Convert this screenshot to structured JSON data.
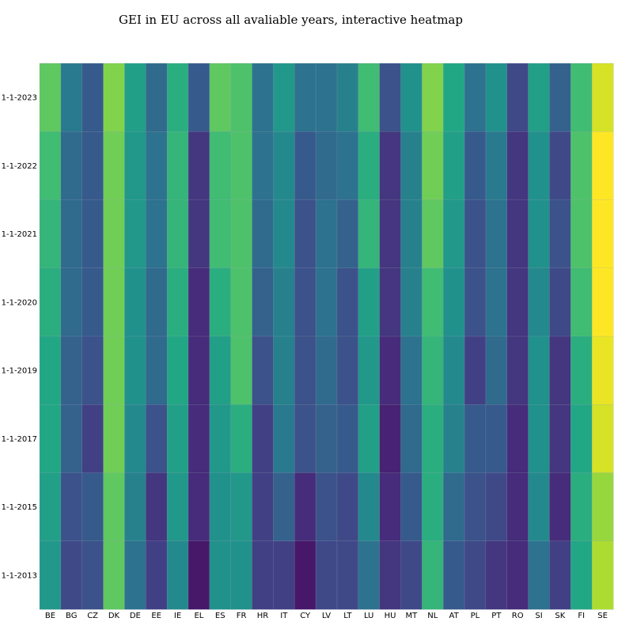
{
  "chart_data": {
    "type": "heatmap",
    "title": "GEI in EU across all avaliable years, interactive heatmap",
    "xlabel": "",
    "ylabel": "",
    "colorscale": "viridis",
    "zlim": [
      52,
      84
    ],
    "x": [
      "BE",
      "BG",
      "CZ",
      "DK",
      "DE",
      "EE",
      "IE",
      "EL",
      "ES",
      "FR",
      "HR",
      "IT",
      "CY",
      "LV",
      "LT",
      "LU",
      "HU",
      "MT",
      "NL",
      "AT",
      "PL",
      "PT",
      "RO",
      "SI",
      "SK",
      "FI",
      "SE"
    ],
    "y": [
      "1-1-2023",
      "1-1-2022",
      "1-1-2021",
      "1-1-2020",
      "1-1-2019",
      "1-1-2017",
      "1-1-2015",
      "1-1-2013"
    ],
    "z": [
      [
        76,
        65,
        61,
        78,
        70,
        63,
        72,
        61,
        76,
        75,
        64,
        69,
        64,
        64,
        66,
        74,
        60,
        68,
        78,
        71,
        64,
        68,
        59,
        70,
        62,
        74,
        82
      ],
      [
        74,
        63,
        61,
        77,
        69,
        64,
        73,
        57,
        74,
        75,
        64,
        67,
        61,
        63,
        64,
        72,
        57,
        66,
        77,
        70,
        61,
        65,
        57,
        68,
        59,
        75,
        84
      ],
      [
        73,
        63,
        61,
        77,
        69,
        64,
        73,
        57,
        74,
        75,
        63,
        67,
        60,
        64,
        62,
        73,
        57,
        66,
        76,
        69,
        60,
        64,
        57,
        68,
        60,
        75,
        84
      ],
      [
        72,
        63,
        61,
        77,
        68,
        63,
        72,
        56,
        72,
        75,
        62,
        66,
        60,
        64,
        60,
        70,
        57,
        66,
        74,
        68,
        60,
        64,
        57,
        67,
        59,
        74,
        84
      ],
      [
        71,
        62,
        60,
        77,
        68,
        63,
        71,
        56,
        70,
        75,
        60,
        66,
        60,
        63,
        60,
        69,
        56,
        64,
        73,
        67,
        58,
        63,
        57,
        68,
        57,
        72,
        83
      ],
      [
        71,
        62,
        58,
        77,
        67,
        60,
        70,
        56,
        69,
        72,
        58,
        65,
        60,
        62,
        61,
        70,
        55,
        63,
        72,
        66,
        61,
        61,
        56,
        68,
        57,
        71,
        82
      ],
      [
        70,
        60,
        61,
        76,
        66,
        57,
        69,
        56,
        68,
        69,
        58,
        62,
        56,
        60,
        59,
        67,
        56,
        61,
        72,
        63,
        60,
        59,
        56,
        67,
        56,
        72,
        79
      ],
      [
        69,
        59,
        60,
        76,
        64,
        58,
        67,
        54,
        68,
        68,
        58,
        58,
        54,
        59,
        59,
        64,
        57,
        59,
        73,
        61,
        59,
        57,
        56,
        64,
        58,
        71,
        80
      ]
    ]
  }
}
